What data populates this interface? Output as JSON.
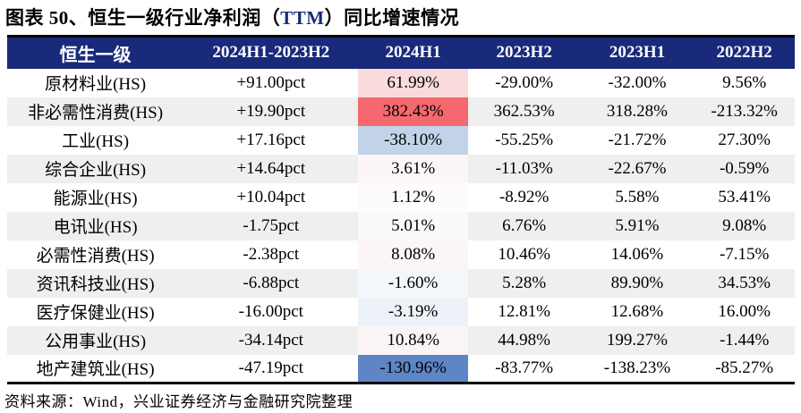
{
  "title": {
    "prefix": "图表 50、恒生一级行业净利润（",
    "em": "TTM",
    "suffix": "）同比增速情况"
  },
  "source": "资料来源：Wind，兴业证券经济与金融研究院整理",
  "colors": {
    "header_bg": "#192a7a",
    "header_text": "#ffffff",
    "stripe": "#efefef",
    "border": "#000000",
    "title_em": "#17297a",
    "highlight_max_red": "#f4686e",
    "highlight_min_blue": "#5e85c5"
  },
  "chart_data": {
    "type": "table",
    "title": "恒生一级行业净利润（TTM）同比增速情况",
    "figure_label": "图表 50",
    "columns": [
      "恒生一级",
      "2024H1-2023H2",
      "2024H1",
      "2023H2",
      "2023H1",
      "2022H2"
    ],
    "conditional_format_column": "2024H1",
    "rows": [
      {
        "industry": "原材料业(HS)",
        "cells": [
          "+91.00pct",
          "61.99%",
          "-29.00%",
          "-32.00%",
          "9.56%"
        ],
        "bg_2024H1": "#f9dbdc"
      },
      {
        "industry": "非必需性消费(HS)",
        "cells": [
          "+19.90pct",
          "382.43%",
          "362.53%",
          "318.28%",
          "-213.32%"
        ],
        "bg_2024H1": "#f4686e"
      },
      {
        "industry": "工业(HS)",
        "cells": [
          "+17.16pct",
          "-38.10%",
          "-55.25%",
          "-21.72%",
          "27.30%"
        ],
        "bg_2024H1": "#c2d3e9"
      },
      {
        "industry": "综合企业(HS)",
        "cells": [
          "+14.64pct",
          "3.61%",
          "-11.03%",
          "-22.67%",
          "-0.59%"
        ],
        "bg_2024H1": "#fcf6f8"
      },
      {
        "industry": "能源业(HS)",
        "cells": [
          "+10.04pct",
          "1.12%",
          "-8.92%",
          "5.58%",
          "53.41%"
        ],
        "bg_2024H1": "#fdfbfc"
      },
      {
        "industry": "电讯业(HS)",
        "cells": [
          "-1.75pct",
          "5.01%",
          "6.76%",
          "5.91%",
          "9.08%"
        ],
        "bg_2024H1": "#fbf8fa"
      },
      {
        "industry": "必需性消费(HS)",
        "cells": [
          "-2.38pct",
          "8.08%",
          "10.46%",
          "14.06%",
          "-7.15%"
        ],
        "bg_2024H1": "#fbf5f7"
      },
      {
        "industry": "资讯科技业(HS)",
        "cells": [
          "-6.88pct",
          "-1.60%",
          "5.28%",
          "89.90%",
          "34.53%"
        ],
        "bg_2024H1": "#f4f7fa"
      },
      {
        "industry": "医疗保健业(HS)",
        "cells": [
          "-16.00pct",
          "-3.19%",
          "12.81%",
          "12.68%",
          "16.00%"
        ],
        "bg_2024H1": "#edf2f8"
      },
      {
        "industry": "公用事业(HS)",
        "cells": [
          "-34.14pct",
          "10.84%",
          "44.98%",
          "199.27%",
          "-1.44%"
        ],
        "bg_2024H1": "#fbf4f5"
      },
      {
        "industry": "地产建筑业(HS)",
        "cells": [
          "-47.19pct",
          "-130.96%",
          "-83.77%",
          "-138.23%",
          "-85.27%"
        ],
        "bg_2024H1": "#5e85c5"
      }
    ]
  }
}
